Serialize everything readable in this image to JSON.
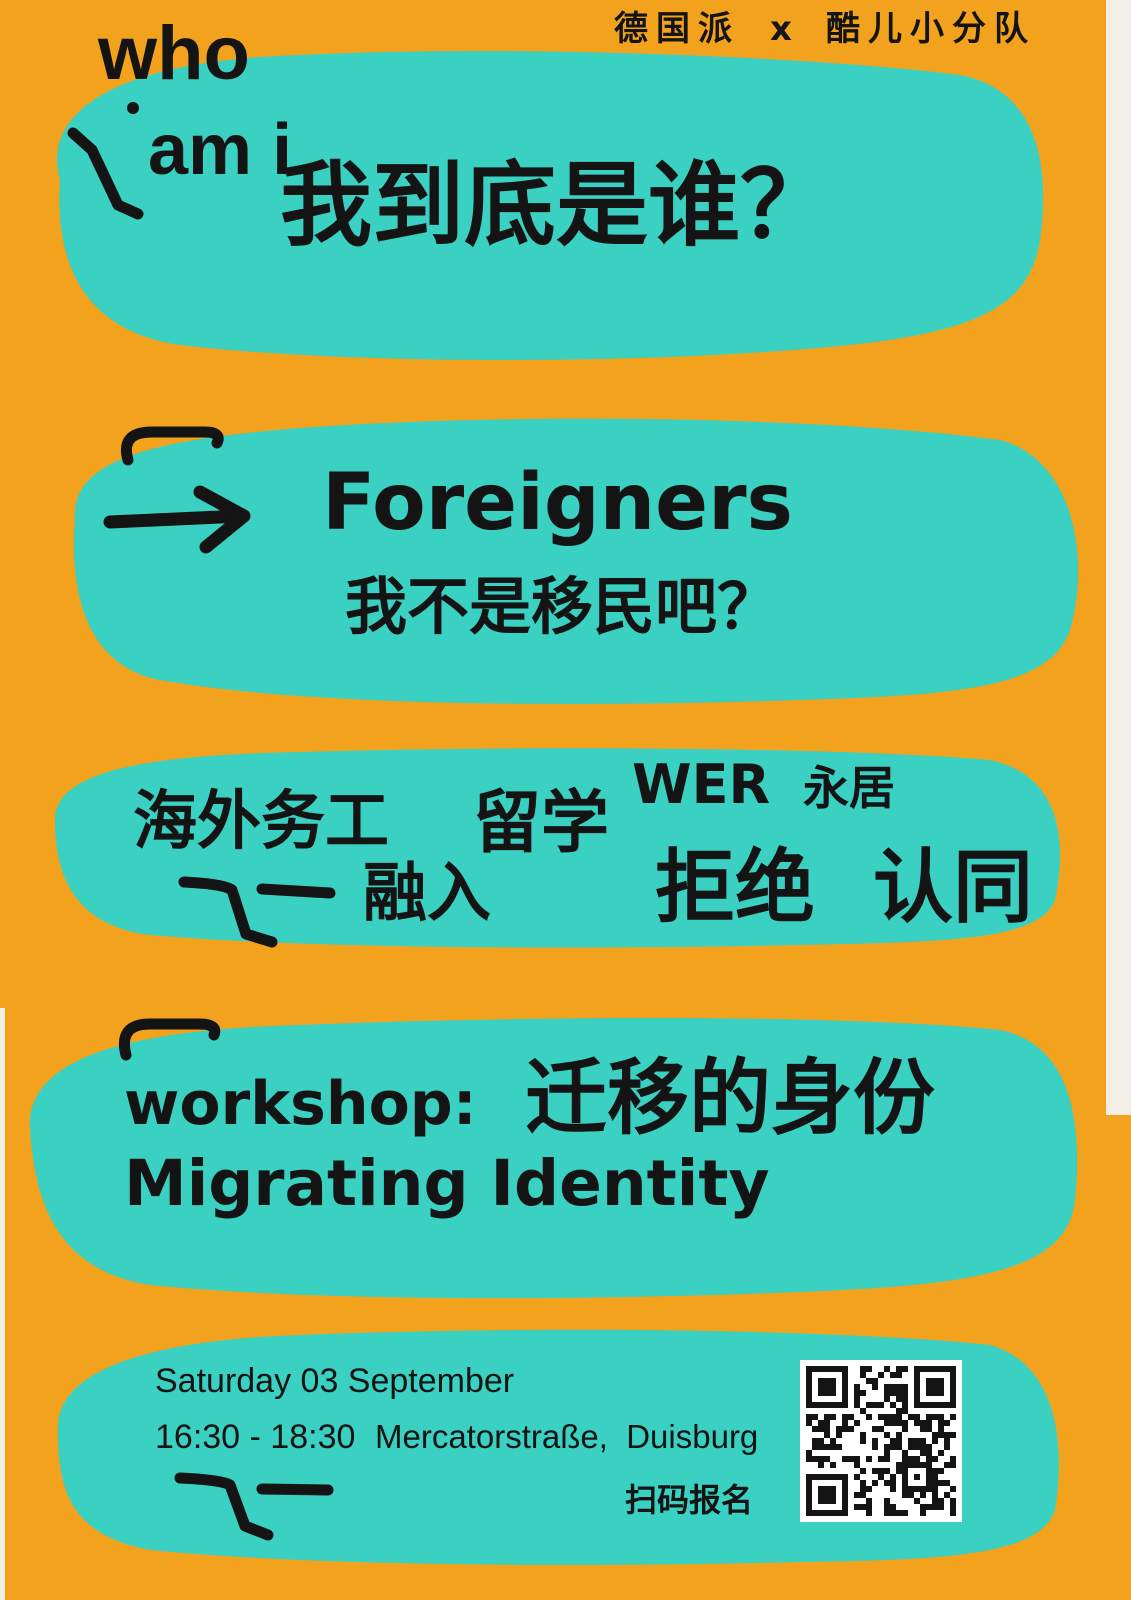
{
  "colors": {
    "background": "#f2a21d",
    "blob": "#3ad0c2",
    "ink": "#141414",
    "qr_background": "#ffffff",
    "border": "#f3efe6"
  },
  "header": {
    "left": "德国派",
    "separator": "x",
    "right": "酷儿小分队"
  },
  "title": {
    "who": "who",
    "am_i": "am i",
    "question_zh": "我到底是谁？"
  },
  "foreigners": {
    "title": "Foreigners",
    "subtitle_zh": "我不是移民吧？"
  },
  "keywords": {
    "overseas_work": "海外务工",
    "study_abroad": "留学",
    "wer": "WER",
    "permanent_residence": "永居",
    "integration": "融入",
    "reject": "拒绝",
    "identity": "认同"
  },
  "workshop": {
    "label": "workshop:",
    "title_zh": "迁移的身份",
    "title_en": "Migrating Identity"
  },
  "event": {
    "date": "Saturday 03 September",
    "time": "16:30 - 18:30",
    "location": "Mercatorstraße,  Duisburg",
    "signup_label": "扫码报名"
  },
  "icons": {
    "foreigners_arrow": "arrow-right-icon",
    "signup": "qr-code-icon",
    "marks": "hand-drawn-squiggle"
  }
}
